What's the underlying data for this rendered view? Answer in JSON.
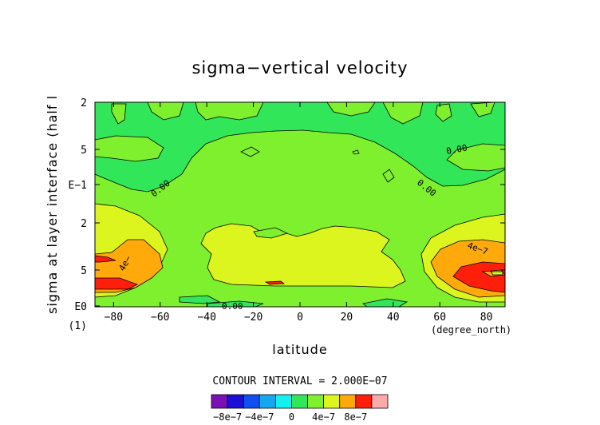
{
  "chart_data": {
    "type": "contour",
    "title": "sigma−vertical velocity",
    "xlabel": "latitude",
    "ylabel": "sigma at layer interface (half l",
    "x_unit": "(degree_north)",
    "y_extra": "(1)",
    "xlim": [
      -88,
      88
    ],
    "x_ticks": [
      -80,
      -60,
      -40,
      -20,
      0,
      20,
      40,
      60,
      80
    ],
    "y_tick_labels": [
      "2",
      "5",
      "E−1",
      "2",
      "5",
      "E0"
    ],
    "contour_interval_text": "CONTOUR INTERVAL = 2.000E−07",
    "contour_labels": [
      "0.00",
      "0.00",
      "0.00",
      "0.00",
      "4e−7",
      "4e−"
    ],
    "colorbar": {
      "colors": [
        "#7a10b8",
        "#1c10d8",
        "#1050f0",
        "#14a8f0",
        "#14f0f0",
        "#32e65a",
        "#7ff02d",
        "#dcf51e",
        "#ffaa0a",
        "#ff1e0a",
        "#ffaaaa"
      ],
      "tick_labels": [
        "−8e−7",
        "−4e−7",
        "0",
        "4e−7",
        "8e−7"
      ]
    }
  }
}
